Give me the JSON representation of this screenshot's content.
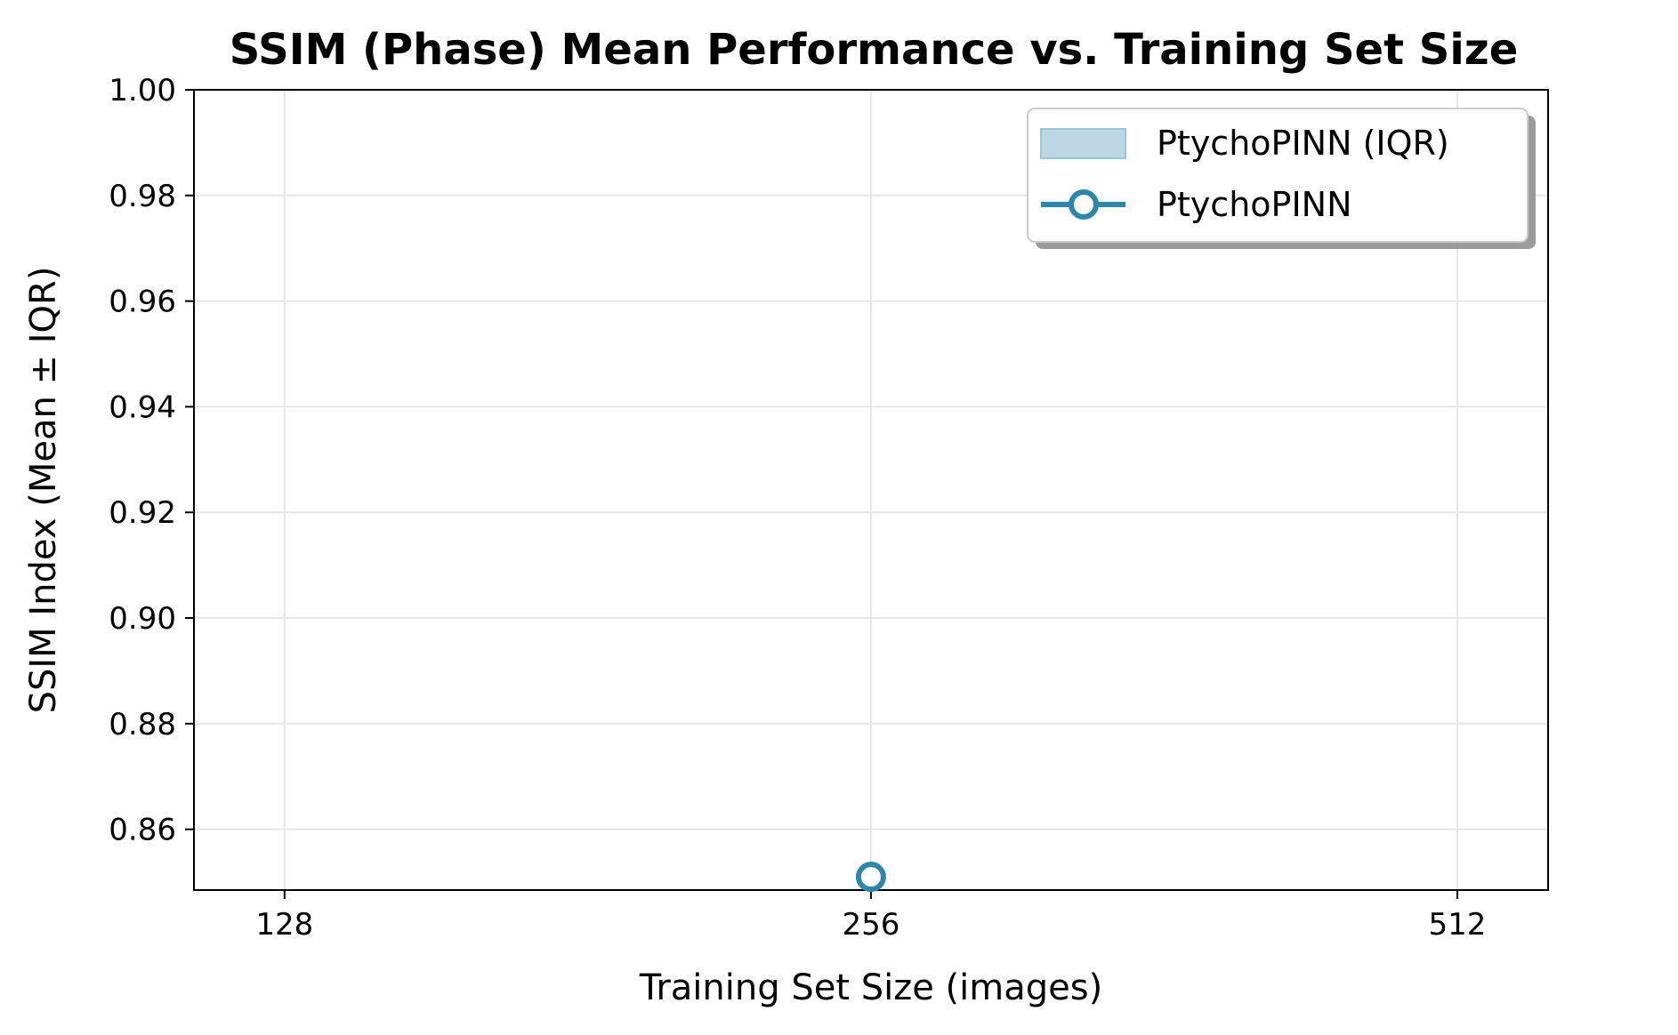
{
  "chart_data": {
    "type": "line",
    "title": "SSIM (Phase) Mean Performance vs. Training Set Size",
    "xlabel": "Training Set Size (images)",
    "ylabel": "SSIM Index (Mean ± IQR)",
    "x_scale": "log2",
    "x_ticks": [
      "128",
      "256",
      "512"
    ],
    "x_tick_values": [
      128,
      256,
      512
    ],
    "xlim": [
      115,
      570
    ],
    "y_ticks": [
      "0.86",
      "0.88",
      "0.90",
      "0.92",
      "0.94",
      "0.96",
      "0.98",
      "1.00"
    ],
    "y_tick_values": [
      0.86,
      0.88,
      0.9,
      0.92,
      0.94,
      0.96,
      0.98,
      1.0
    ],
    "ylim": [
      0.8485,
      1.0
    ],
    "grid": true,
    "legend_position": "upper right",
    "legend": [
      {
        "label": "PtychoPINN (IQR)",
        "kind": "area"
      },
      {
        "label": "PtychoPINN",
        "kind": "line-marker"
      }
    ],
    "series": [
      {
        "name": "PtychoPINN",
        "x": [
          256
        ],
        "y": [
          0.851
        ],
        "color": "#2e86ab",
        "marker": "open-circle"
      }
    ],
    "iqr_band": {
      "name": "PtychoPINN (IQR)",
      "x": [
        256
      ],
      "low": [
        0.851
      ],
      "high": [
        0.851
      ],
      "color": "#a9cbdc"
    }
  }
}
